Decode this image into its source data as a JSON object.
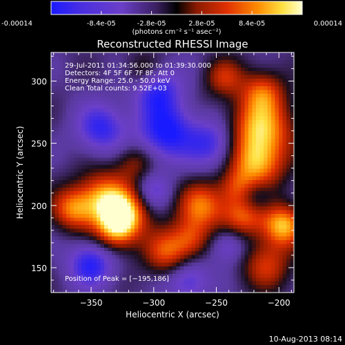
{
  "colorbar": {
    "tick_labels": [
      "-0.00014",
      "-8.4e-05",
      "-2.8e-05",
      "2.8e-05",
      "8.4e-05",
      "0.00014"
    ],
    "tick_values": [
      -0.00014,
      -8.4e-05,
      -2.8e-05,
      2.8e-05,
      8.4e-05,
      0.00014
    ],
    "range": [
      -0.00014,
      0.00014
    ],
    "unit_label": "(photons cm⁻² s⁻¹ asec⁻²)"
  },
  "chart_data": {
    "type": "heatmap",
    "title": "Reconstructed RHESSI Image",
    "xlabel": "Heliocentric X (arcsec)",
    "ylabel": "Heliocentric Y (arcsec)",
    "xlim": [
      -382,
      -188
    ],
    "ylim": [
      130,
      323
    ],
    "x_ticks": [
      -350,
      -300,
      -250,
      -200
    ],
    "x_tick_labels": [
      "−350",
      "−300",
      "−250",
      "−200"
    ],
    "y_ticks": [
      150,
      200,
      250,
      300
    ],
    "y_tick_labels": [
      "150",
      "200",
      "250",
      "300"
    ],
    "colormap": [
      "#1a1aff",
      "#6b3fc8",
      "#5a3aa0",
      "#1a0d1a",
      "#8a1a00",
      "#e03000",
      "#ff8a00",
      "#ffe040",
      "#ffffd0"
    ],
    "peak": [
      -195,
      186
    ],
    "annotations": [
      "29-Jul-2011 01:34:56.000 to 01:39:30.000",
      "Detectors: 4F 5F 6F 7F 8F, Att 0",
      "Energy Range: 25.0 - 50.0 keV",
      "Clean    Total counts: 9.52E+03"
    ],
    "peak_label": "Position of Peak = [−195,186]",
    "blobs": [
      {
        "x": -215,
        "y": 262,
        "w": 1.0,
        "s": 18
      },
      {
        "x": -218,
        "y": 232,
        "w": 0.85,
        "s": 15
      },
      {
        "x": -213,
        "y": 292,
        "w": 0.6,
        "s": 12
      },
      {
        "x": -197,
        "y": 184,
        "w": 1.0,
        "s": 12
      },
      {
        "x": -228,
        "y": 192,
        "w": 0.75,
        "s": 12
      },
      {
        "x": -262,
        "y": 199,
        "w": 0.8,
        "s": 14
      },
      {
        "x": -290,
        "y": 162,
        "w": 0.7,
        "s": 13
      },
      {
        "x": -270,
        "y": 173,
        "w": 0.55,
        "s": 11
      },
      {
        "x": -340,
        "y": 206,
        "w": 0.9,
        "s": 15
      },
      {
        "x": -323,
        "y": 193,
        "w": 0.85,
        "s": 13
      },
      {
        "x": -330,
        "y": 180,
        "w": 0.75,
        "s": 12
      },
      {
        "x": -365,
        "y": 197,
        "w": 0.75,
        "s": 12
      },
      {
        "x": -315,
        "y": 235,
        "w": 0.45,
        "s": 11
      },
      {
        "x": -244,
        "y": 303,
        "w": 0.55,
        "s": 11
      },
      {
        "x": -308,
        "y": 307,
        "w": 0.45,
        "s": 11
      },
      {
        "x": -210,
        "y": 152,
        "w": 0.6,
        "s": 14
      },
      {
        "x": -233,
        "y": 214,
        "w": 0.5,
        "s": 10
      },
      {
        "x": -342,
        "y": 262,
        "w": -0.65,
        "s": 14
      },
      {
        "x": -290,
        "y": 258,
        "w": -0.8,
        "s": 16
      },
      {
        "x": -252,
        "y": 250,
        "w": -0.6,
        "s": 14
      },
      {
        "x": -298,
        "y": 294,
        "w": -0.7,
        "s": 14
      },
      {
        "x": -220,
        "y": 207,
        "w": -0.45,
        "s": 10
      },
      {
        "x": -272,
        "y": 140,
        "w": -0.55,
        "s": 12
      },
      {
        "x": -350,
        "y": 153,
        "w": -0.7,
        "s": 13
      },
      {
        "x": -300,
        "y": 212,
        "w": -0.4,
        "s": 10
      },
      {
        "x": -240,
        "y": 168,
        "w": -0.45,
        "s": 10
      }
    ]
  },
  "footer": {
    "timestamp": "10-Aug-2013 08:14"
  }
}
